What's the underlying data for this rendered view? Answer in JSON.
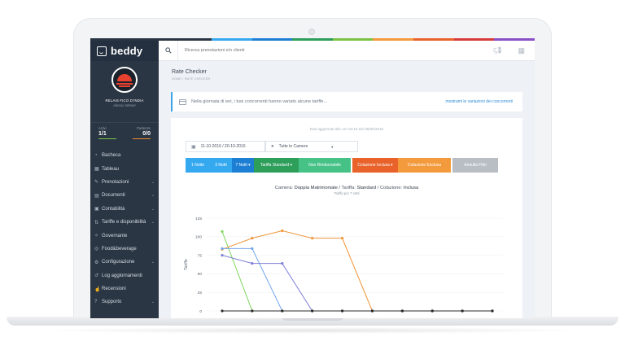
{
  "app": {
    "brand": "beddy",
    "search_placeholder": "Ricerca prenotazioni e/o clienti"
  },
  "profile": {
    "hotel": "RELAIS FICO D'INDIA",
    "user": "Alessio Winner"
  },
  "counts": {
    "arrivals": {
      "label": "Arrivi",
      "value": "1/1",
      "color": "#7bc144"
    },
    "departures": {
      "label": "Partenze",
      "value": "0/0",
      "color": "#f0892c"
    }
  },
  "menu": [
    {
      "label": "Bacheca",
      "icon": "◔",
      "chevron": ""
    },
    {
      "label": "Tableau",
      "icon": "▦",
      "chevron": ""
    },
    {
      "label": "Prenotazioni",
      "icon": "✎",
      "chevron": "⌄"
    },
    {
      "label": "Documenti",
      "icon": "▤",
      "chevron": "⌄"
    },
    {
      "label": "Contabilità",
      "icon": "▣",
      "chevron": "⌄"
    },
    {
      "label": "Tariffe e disponibilità",
      "icon": "⇅",
      "chevron": "⌄"
    },
    {
      "label": "Governante",
      "icon": "✧",
      "chevron": ""
    },
    {
      "label": "Food&beverage",
      "icon": "◎",
      "chevron": ""
    },
    {
      "label": "Configurazione",
      "icon": "⚙",
      "chevron": "⌄"
    },
    {
      "label": "Log aggiornamenti",
      "icon": "↺",
      "chevron": ""
    },
    {
      "label": "Recensioni",
      "icon": "☝",
      "chevron": ""
    },
    {
      "label": "Supporto",
      "icon": "?",
      "chevron": "⌄"
    }
  ],
  "page": {
    "title": "Rate Checker",
    "breadcrumb": "HOME  /  RATE CHECKER",
    "alert": "Nella giornata di ieri, i tuoi concorrenti hanno variato alcune tariffe...",
    "alert_link": "mostrami le variazioni dei concorrenti",
    "updated": "Dati aggiornati alle ore 03:15 del 06/06/2016"
  },
  "filters": {
    "dates": "11-10-2016  /  20-10-2016",
    "rooms": "Tutte le Camere"
  },
  "buttons": [
    {
      "label": "1 Notte",
      "color": "#35a9f0"
    },
    {
      "label": "3 Notti",
      "color": "#35a9f0"
    },
    {
      "label": "7 Notti ▾",
      "color": "#1d7fd4"
    },
    {
      "label": "Tariffa Standard ▾",
      "color": "#2e9e5b"
    },
    {
      "label": "Non Rimborsabile",
      "color": "#46c287"
    },
    {
      "label": "Colazione Inclusa ▾",
      "color": "#e8622a"
    },
    {
      "label": "Colazione Esclusa",
      "color": "#f39a3d"
    },
    {
      "label": "Annulla Filtri",
      "color": "#b9bec5"
    }
  ],
  "chart_data": {
    "type": "line",
    "title_parts": [
      "Camera: ",
      "Doppia Matrimoniale",
      "  /  Tariffa: ",
      "Standard",
      "  /  Colazione: ",
      "Inclusa"
    ],
    "subtitle": "Tariffa per 7 notti",
    "ylabel": "Tariffe",
    "ylim": [
      0,
      125
    ],
    "yticks": [
      0,
      25,
      50,
      75,
      100,
      125
    ],
    "x": [
      0,
      1,
      2,
      3,
      4,
      5,
      6,
      7,
      8,
      9
    ],
    "series": [
      {
        "color": "#7cd65a",
        "values": [
          107,
          0,
          0,
          0,
          0,
          0,
          0,
          0,
          0,
          0
        ]
      },
      {
        "color": "#f0953a",
        "values": [
          83,
          98,
          108,
          98,
          98,
          0,
          0,
          0,
          0,
          0
        ]
      },
      {
        "color": "#74a6ec",
        "values": [
          84,
          84,
          0,
          0,
          0,
          0,
          0,
          0,
          0,
          0
        ]
      },
      {
        "color": "#7e7fd6",
        "values": [
          75,
          64,
          64,
          0,
          0,
          0,
          0,
          0,
          0,
          0
        ]
      },
      {
        "color": "#2b2b2b",
        "values": [
          0,
          0,
          0,
          0,
          0,
          0,
          0,
          0,
          0,
          0
        ]
      }
    ],
    "grid": true
  }
}
